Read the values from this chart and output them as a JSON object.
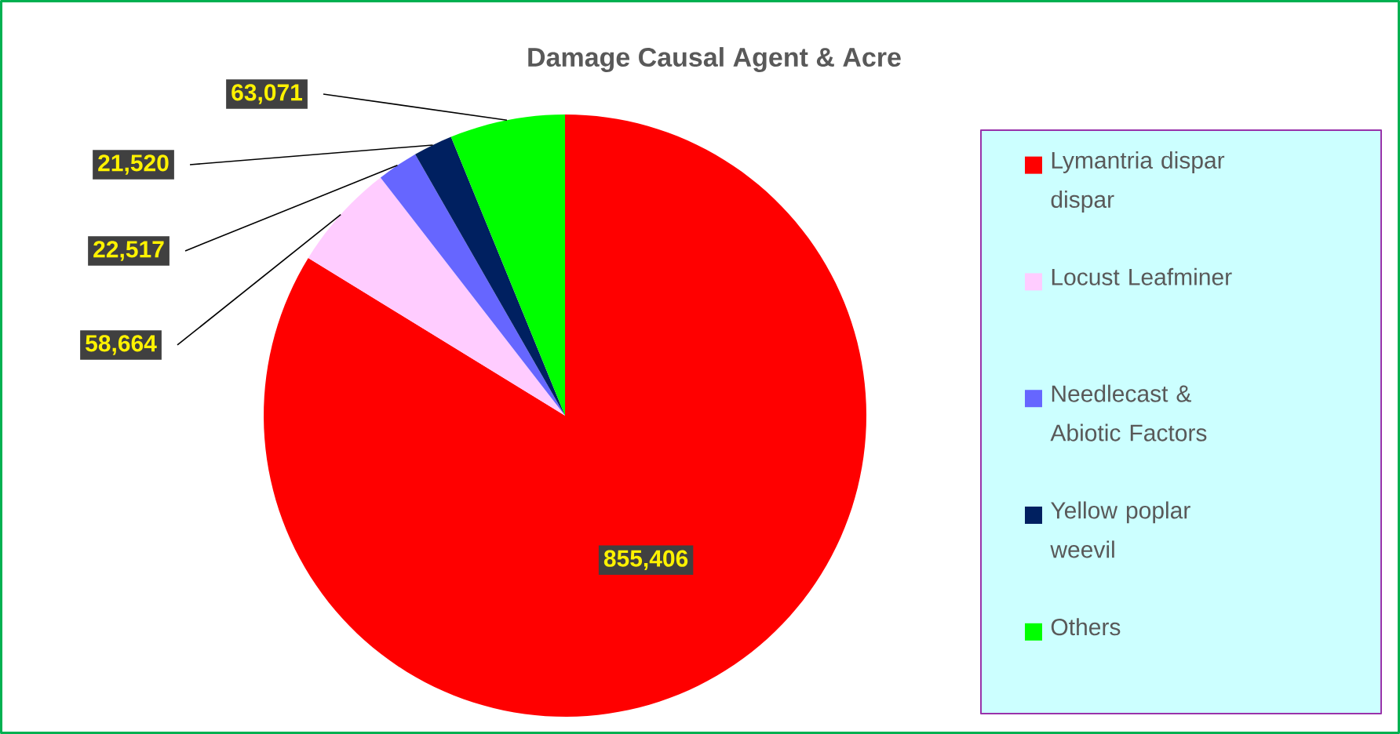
{
  "chart_data": {
    "type": "pie",
    "title": "Damage Causal Agent & Acre",
    "categories": [
      "Lymantria dispar dispar",
      "Locust Leafminer",
      "Needlecast & Abiotic Factors",
      "Yellow poplar weevil",
      "Others"
    ],
    "values": [
      855406,
      58664,
      22517,
      21520,
      63071
    ],
    "colors": [
      "#ff0000",
      "#ffccff",
      "#6666ff",
      "#002060",
      "#00ff00"
    ],
    "value_labels": [
      "855,406",
      "58,664",
      "22,517",
      "21,520",
      "63,071"
    ],
    "legend": "right"
  }
}
